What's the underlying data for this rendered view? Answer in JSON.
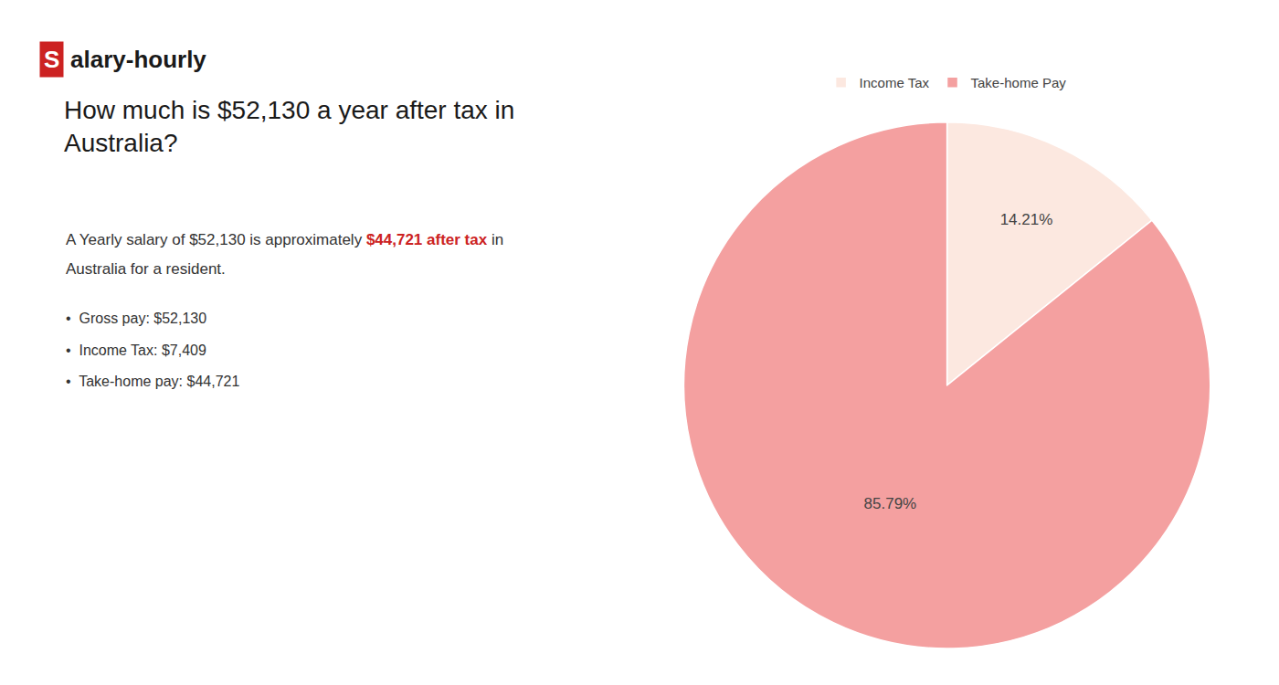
{
  "chart_data": {
    "type": "pie",
    "title": "How much is $52,130 a year after tax in\nAustralia?",
    "categories": [
      "Income Tax",
      "Take-home Pay"
    ],
    "values": [
      14.21,
      85.79
    ],
    "value_labels": [
      "14.21%",
      "85.79%"
    ],
    "colors": [
      "#fce8e0",
      "#f4a0a0"
    ],
    "data_labels": true,
    "legend": "top",
    "annotations": [
      [
        {
          "text": "S",
          "color": "#ffffff",
          "bgcolor": "#cc2222",
          "bold": true
        },
        {
          "text": "alary-hourly",
          "color": "#1a1a1a",
          "bold": true
        }
      ],
      [
        {
          "text": "A Yearly salary of $52,130 is approximately ",
          "color": "#333333"
        },
        {
          "text": "$44,721 after tax",
          "color": "#cc2222",
          "bold": true
        },
        {
          "text": " in",
          "color": "#333333"
        }
      ],
      [
        {
          "text": "Australia for a resident.",
          "color": "#333333"
        }
      ],
      [
        {
          "text": "•  Gross pay: $52,130",
          "color": "#333333"
        }
      ],
      [
        {
          "text": "•  Income Tax: $7,409",
          "color": "#333333"
        }
      ],
      [
        {
          "text": "•  Take-home pay: $44,721",
          "color": "#333333"
        }
      ]
    ]
  }
}
